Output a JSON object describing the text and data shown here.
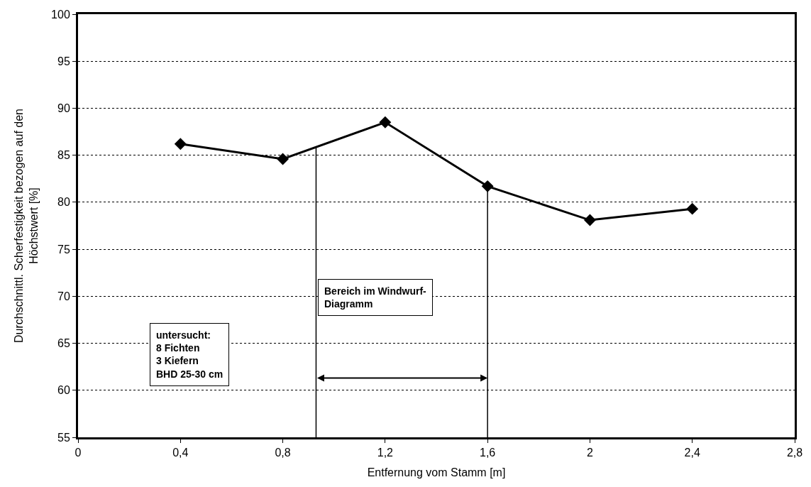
{
  "chart_data": {
    "type": "line",
    "xlabel": "Entfernung vom Stamm [m]",
    "ylabel": "Durchschnittl. Scherfestigkeit bezogen auf den Höchstwert [%]",
    "x": [
      0.4,
      0.8,
      1.2,
      1.6,
      2.0,
      2.4
    ],
    "series": [
      {
        "color": "#000000",
        "values": [
          86.2,
          84.6,
          88.5,
          81.7,
          78.1,
          79.3
        ]
      }
    ],
    "xlim": [
      0,
      2.8
    ],
    "xticks": [
      0,
      {
        "value": 0.4,
        "label": "0,4"
      },
      {
        "value": 0.8,
        "label": "0,8"
      },
      {
        "value": 1.2,
        "label": "1,2"
      },
      {
        "value": 1.6,
        "label": "1,6"
      },
      2,
      {
        "value": 2.4,
        "label": "2,4"
      },
      {
        "value": 2.8,
        "label": "2,8"
      }
    ],
    "ylim": [
      55,
      100
    ],
    "yticks": [
      55,
      60,
      65,
      70,
      75,
      80,
      85,
      90,
      95,
      100
    ],
    "grid": "y",
    "marker": "diamond",
    "line_style": "solid",
    "ref_lines": [
      {
        "axis": "x",
        "value": 0.93,
        "color": "#000000"
      },
      {
        "axis": "x",
        "value": 1.6,
        "color": "#000000"
      }
    ],
    "annotations": [
      "untersucht:\n8 Fichten\n3 Kiefern\nBHD 25-30 cm",
      "Bereich im Windwurf-\nDiagramm"
    ]
  }
}
